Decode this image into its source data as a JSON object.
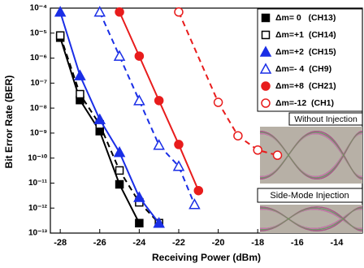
{
  "chart_data": {
    "type": "line",
    "x_label": "Receiving Power (dBm)",
    "y_label": "Bit Error Rate (BER)",
    "xlim": [
      -28.5,
      -12.7
    ],
    "xticks": [
      -28,
      -26,
      -24,
      -22,
      -20,
      -18,
      -16,
      -14
    ],
    "ylim": [
      1e-13,
      0.0001
    ],
    "yscale": "log",
    "yticks": [
      {
        "value": 1e-13,
        "label": "10⁻¹³"
      },
      {
        "value": 1e-12,
        "label": "10⁻¹²"
      },
      {
        "value": 1e-11,
        "label": "10⁻¹¹"
      },
      {
        "value": 1e-10,
        "label": "10⁻¹⁰"
      },
      {
        "value": 1e-09,
        "label": "10⁻⁹"
      },
      {
        "value": 1e-08,
        "label": "10⁻⁸"
      },
      {
        "value": 1e-07,
        "label": "10⁻⁷"
      },
      {
        "value": 1e-06,
        "label": "10⁻⁶"
      },
      {
        "value": 1e-05,
        "label": "10⁻⁵"
      },
      {
        "value": 0.0001,
        "label": "10⁻⁴"
      }
    ],
    "legend": "top-right",
    "series": [
      {
        "name": "Δm= 0   (CH13)",
        "color": "#000000",
        "marker": "square",
        "filled": true,
        "linestyle": "solid",
        "x": [
          -28,
          -27,
          -26,
          -25,
          -24
        ],
        "values": [
          6.6e-06,
          2.1e-08,
          1.2e-09,
          8.9e-12,
          2.5e-13
        ]
      },
      {
        "name": "Δm=+1  (CH14)",
        "color": "#000000",
        "marker": "square",
        "filled": false,
        "linestyle": "dashed",
        "x": [
          -28,
          -27,
          -26,
          -25,
          -24,
          -23
        ],
        "values": [
          8e-06,
          3.6e-08,
          2.2e-09,
          3.2e-11,
          1.7e-12,
          2.5e-13
        ]
      },
      {
        "name": "Δm=+2  (CH15)",
        "color": "#1a2ee6",
        "marker": "triangle",
        "filled": true,
        "linestyle": "solid",
        "x": [
          -28,
          -27,
          -26,
          -25,
          -24,
          -23
        ],
        "values": [
          7e-05,
          2e-07,
          3.5e-09,
          1.7e-10,
          2.7e-12,
          2.5e-13
        ]
      },
      {
        "name": "Δm=- 4  (CH9)",
        "color": "#1a2ee6",
        "marker": "triangle",
        "filled": false,
        "linestyle": "dashed",
        "x": [
          -26,
          -25,
          -24,
          -23,
          -22,
          -21.2
        ],
        "values": [
          7e-05,
          1.2e-06,
          2e-08,
          3.3e-10,
          4.7e-11,
          1.4e-12
        ]
      },
      {
        "name": "Δm=+8  (CH21)",
        "color": "#e81c1c",
        "marker": "circle",
        "filled": true,
        "linestyle": "solid",
        "x": [
          -25,
          -24,
          -23,
          -22,
          -21
        ],
        "values": [
          7e-05,
          1.2e-06,
          2e-08,
          3.5e-10,
          5e-12
        ]
      },
      {
        "name": "Δm=-12  (CH1)",
        "color": "#e81c1c",
        "marker": "circle",
        "filled": false,
        "linestyle": "dashed",
        "x": [
          -22,
          -20,
          -19,
          -18,
          -17
        ],
        "values": [
          7e-05,
          1.7e-08,
          7.8e-10,
          2.1e-10,
          1.3e-10
        ]
      }
    ],
    "insets": [
      "Without Injection",
      "Side-Mode Injection"
    ]
  }
}
